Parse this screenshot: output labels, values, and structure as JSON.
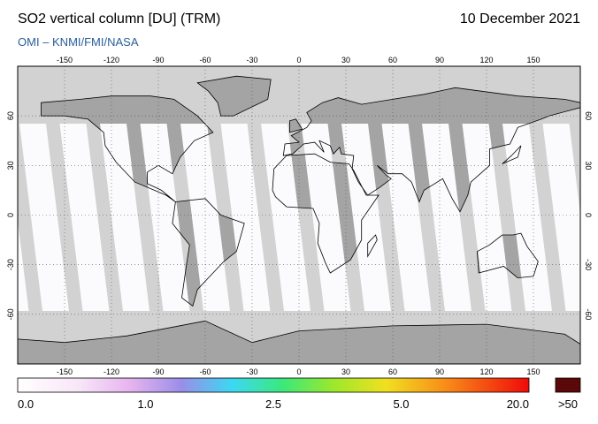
{
  "header": {
    "title": "SO2 vertical column [DU] (TRM)",
    "date": "10 December 2021",
    "source": "OMI  –  KNMI/FMI/NASA"
  },
  "map": {
    "lon_ticks": [
      -150,
      -120,
      -90,
      -60,
      -30,
      0,
      30,
      60,
      90,
      120,
      150
    ],
    "lat_ticks": [
      60,
      30,
      0,
      -30,
      -60
    ]
  },
  "colorbar": {
    "labels": [
      "0.0",
      "1.0",
      "2.5",
      "5.0",
      "20.0"
    ],
    "overflow_label": ">50"
  }
}
